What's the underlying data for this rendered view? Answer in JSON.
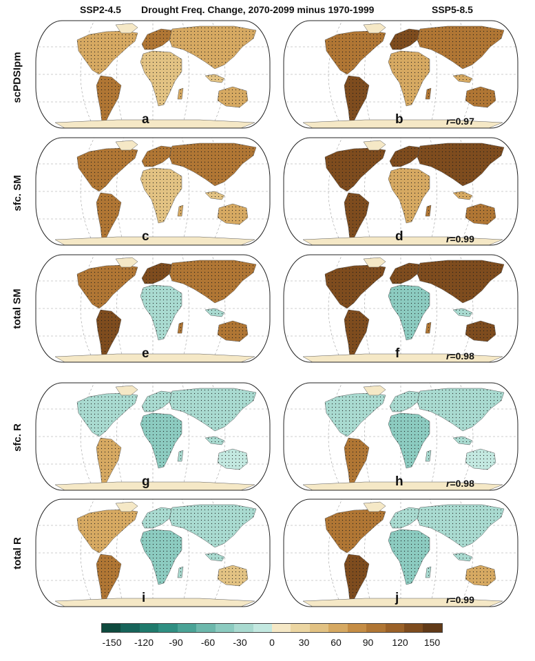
{
  "header": {
    "left_scenario": "SSP2-4.5",
    "title": "Drought Freq. Change, 2070-2099 minus 1970-1999",
    "right_scenario": "SSP5-8.5"
  },
  "rows": [
    {
      "label": "scPDSIpm",
      "left_panel": "a",
      "right_panel": "b",
      "r_symbol": "r",
      "r_text": "=0.97"
    },
    {
      "label": "sfc. SM",
      "left_panel": "c",
      "right_panel": "d",
      "r_symbol": "r",
      "r_text": "=0.99"
    },
    {
      "label": "total SM",
      "left_panel": "e",
      "right_panel": "f",
      "r_symbol": "r",
      "r_text": "=0.98"
    },
    {
      "label": "sfc. R",
      "left_panel": "g",
      "right_panel": "h",
      "r_symbol": "r",
      "r_text": "=0.98"
    },
    {
      "label": "total R",
      "left_panel": "i",
      "right_panel": "j",
      "r_symbol": "r",
      "r_text": "=0.99"
    }
  ],
  "colorbar": {
    "ticks": [
      "-150",
      "-120",
      "-90",
      "-60",
      "-30",
      "0",
      "30",
      "60",
      "90",
      "120",
      "150"
    ],
    "colors": [
      "#0e4a3e",
      "#17645a",
      "#1f7a6c",
      "#2f8f82",
      "#4aa396",
      "#6db8ac",
      "#8ccbc0",
      "#a9dad0",
      "#c3e8e0",
      "#f5e8c6",
      "#ecd6a2",
      "#e2c283",
      "#d6a962",
      "#c58d45",
      "#b07634",
      "#9a6128",
      "#7e4c1e",
      "#613a18"
    ],
    "range": [
      -160,
      160
    ]
  },
  "maps": {
    "ocean_color": "#ffffff",
    "land_neutral": "#f3ead0",
    "stipple_color": "#1a1a1a",
    "grid_color": "#9a9a9a"
  }
}
